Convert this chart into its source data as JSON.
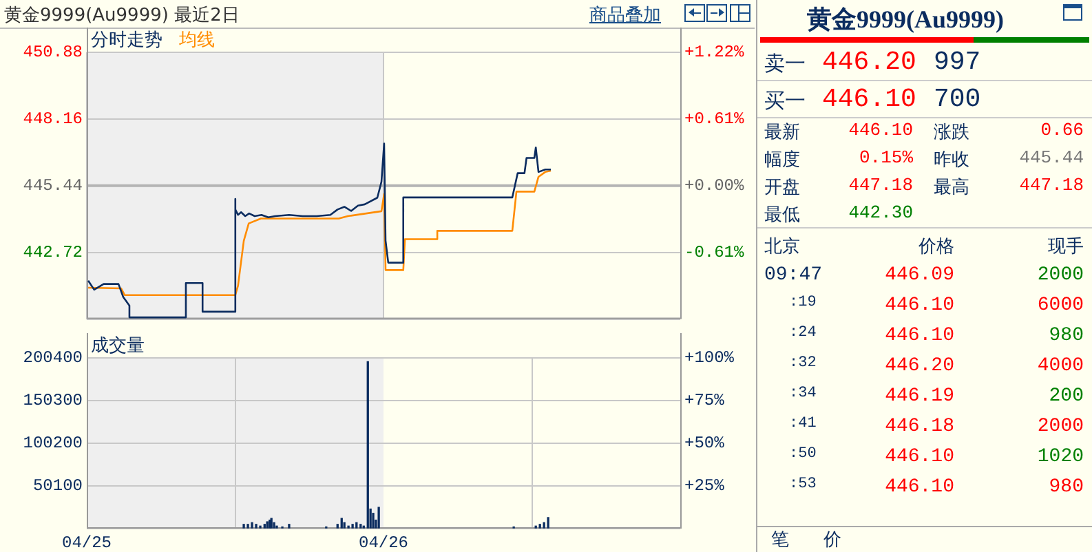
{
  "chart_data": [
    {
      "type": "line",
      "title": "黄金9999(Au9999) 最近2日",
      "annotations": [
        "商品叠加"
      ],
      "grid": true,
      "tick_labels": "y",
      "marker": "none",
      "xlim": [
        "--04-25",
        "--04-27"
      ],
      "xticks": [
        {
          "value": "--04-25",
          "label": "04/25"
        },
        {
          "value": "--04-26",
          "label": "04/26"
        }
      ],
      "ylim": [
        440.0,
        450.88
      ],
      "yticks": [
        {
          "value": 440.0,
          "label": null
        },
        448.16,
        450.88,
        445.44,
        442.72
      ],
      "y2lim": [
        -1.22,
        1.22
      ],
      "y2ticks": [
        {
          "value": 1.22,
          "label": "+1.22%"
        },
        {
          "value": 0.61,
          "label": "+0.61%"
        },
        {
          "value": 0,
          "label": "+0.00%"
        },
        {
          "value": -0.61,
          "label": "-0.61%"
        }
      ],
      "bands": [
        {
          "axis": "x",
          "from": "--04-25",
          "to": "--04-26",
          "color": "#efefef"
        }
      ],
      "ref_lines": [
        {
          "axis": "y",
          "value": 445.44,
          "color": "#b4b4b4"
        }
      ],
      "series": [
        {
          "name": "分时走势",
          "color": "#0b2c5f",
          "x": [
            "--04-25T00:07",
            "--04-25T00:36",
            "--04-25T01:22",
            "--04-25T02:34",
            "--04-25T02:57",
            "--04-25T03:27",
            "--04-25T03:27",
            "--04-25T08:01",
            "--04-25T08:01",
            "--04-25T09:22",
            "--04-25T09:22",
            "--04-25T12:01",
            "--04-25T12:01",
            "--04-25T12:01",
            "--04-25T12:14",
            "--04-25T12:29",
            "--04-25T12:49",
            "--04-25T13:08",
            "--04-25T13:35",
            "--04-25T14:08",
            "--04-25T14:41",
            "--04-25T15:14",
            "--04-25T16:22",
            "--04-25T17:28",
            "--04-25T18:36",
            "--04-25T19:42",
            "--04-25T20:17",
            "--04-25T20:50",
            "--04-25T21:23",
            "--04-25T21:56",
            "--04-25T22:29",
            "--04-25T23:30",
            "--04-25T23:50",
            "--04-26T00:03",
            "--04-26T00:10",
            "--04-26T00:23",
            "--04-26T01:36",
            "--04-26T01:36",
            "--04-26T10:25",
            "--04-26T10:51",
            "--04-26T11:24",
            "--04-26T11:34",
            "--04-26T12:12",
            "--04-26T12:19",
            "--04-26T12:32",
            "--04-26T13:05",
            "--04-26T13:32"
          ],
          "values": [
            441.57,
            441.2,
            441.43,
            441.43,
            440.9,
            440.55,
            440.07,
            440.07,
            441.47,
            441.47,
            440.3,
            440.3,
            444.9,
            444.47,
            444.25,
            444.36,
            444.2,
            444.31,
            444.2,
            444.25,
            444.15,
            444.2,
            444.25,
            444.2,
            444.2,
            444.25,
            444.47,
            444.58,
            444.41,
            444.63,
            444.68,
            444.95,
            445.6,
            447.16,
            443.2,
            442.3,
            442.3,
            444.96,
            444.96,
            445.95,
            445.95,
            446.57,
            446.57,
            447.0,
            446.0,
            446.1,
            446.1
          ]
        },
        {
          "name": "均线",
          "color": "#ff8c00",
          "x": [
            "--04-25T00:07",
            "--04-25T02:47",
            "--04-25T03:04",
            "--04-25T12:01",
            "--04-25T12:14",
            "--04-25T12:42",
            "--04-25T13:06",
            "--04-25T14:05",
            "--04-25T20:23",
            "--04-25T21:07",
            "--04-25T23:50",
            "--04-26T00:03",
            "--04-26T00:10",
            "--04-26T00:23",
            "--04-26T01:36",
            "--04-26T01:44",
            "--04-26T04:21",
            "--04-26T04:21",
            "--04-26T10:25",
            "--04-26T10:45",
            "--04-26T12:12",
            "--04-26T12:32",
            "--04-26T13:05",
            "--04-26T13:32"
          ],
          "values": [
            441.28,
            441.25,
            440.98,
            440.98,
            441.36,
            443.19,
            443.9,
            444.1,
            444.1,
            444.2,
            444.4,
            445.1,
            442.0,
            442.0,
            442.0,
            443.26,
            443.26,
            443.6,
            443.6,
            445.2,
            445.2,
            445.8,
            446.0,
            446.05
          ]
        }
      ]
    },
    {
      "type": "bar",
      "title": "成交量",
      "grid": true,
      "xlim": [
        "--04-25",
        "--04-27"
      ],
      "xticks": [
        {
          "value": "--04-25",
          "label": "04/25"
        },
        {
          "value": "--04-26",
          "label": "04/26"
        }
      ],
      "ylim": [
        0,
        200400
      ],
      "yticks": [
        {
          "value": 0,
          "label": null
        },
        50100,
        100200,
        150300,
        200400
      ],
      "y2lim": [
        0,
        100
      ],
      "y2ticks": [
        {
          "value": 25,
          "label": "+25%"
        },
        {
          "value": 50,
          "label": "+50%"
        },
        {
          "value": 75,
          "label": "+75%"
        },
        {
          "value": 100,
          "label": "+100%"
        }
      ],
      "bands": [
        {
          "axis": "x",
          "from": "--04-25",
          "to": "--04-26",
          "color": "#efefef"
        }
      ],
      "series": [
        {
          "color": "#0b2c5f",
          "x": [
            "--04-25T12:42",
            "--04-25T13:02",
            "--04-25T13:22",
            "--04-25T13:42",
            "--04-25T14:02",
            "--04-25T14:23",
            "--04-25T14:36",
            "--04-25T14:48",
            "--04-25T14:56",
            "--04-25T15:09",
            "--04-25T15:22",
            "--04-25T15:49",
            "--04-25T16:22",
            "--04-25T19:22",
            "--04-25T20:17",
            "--04-25T20:37",
            "--04-25T20:50",
            "--04-25T21:10",
            "--04-25T21:30",
            "--04-25T21:49",
            "--04-25T22:09",
            "--04-25T22:24",
            "--04-25T22:44",
            "--04-25T22:57",
            "--04-25T23:10",
            "--04-25T23:23",
            "--04-25T23:37",
            "--04-26T10:32",
            "--04-26T12:19",
            "--04-26T12:39",
            "--04-26T12:59",
            "--04-26T13:19"
          ],
          "values": [
            5000,
            5000,
            7000,
            5000,
            3000,
            5000,
            8000,
            10000,
            12000,
            7000,
            3000,
            2000,
            5000,
            2000,
            5000,
            12000,
            7000,
            3000,
            5000,
            7000,
            5000,
            3000,
            196000,
            23000,
            18000,
            10000,
            25000,
            2000,
            3000,
            5000,
            7000,
            13000
          ]
        }
      ]
    },
    {
      "type": "other",
      "title": "黄金9999(Au9999)",
      "annotations": [
        "卖一",
        "446.20",
        "997",
        "买一",
        "446.10",
        "700",
        "最新",
        "446.10",
        "涨跌",
        "0.66",
        "幅度",
        "0.15%",
        "昨收",
        "445.44",
        "开盘",
        "447.18",
        "最高",
        "447.18",
        "最低",
        "442.30",
        "北京",
        "价格",
        "现手",
        "09:47",
        "446.09",
        "2000",
        ":19",
        "446.10",
        "6000",
        ":24",
        "446.10",
        "980",
        ":32",
        "446.20",
        "4000",
        ":34",
        "446.19",
        "200",
        ":41",
        "446.18",
        "2000",
        ":50",
        "446.10",
        "1020",
        ":53",
        "446.10",
        "980",
        "笔",
        "价"
      ],
      "colors": [
        "#0b2c5f",
        "#ff0000",
        "#0b2c5f",
        "#0b2c5f",
        "#ff0000",
        "#0b2c5f",
        "#0b2c5f",
        "#ff0000",
        "#0b2c5f",
        "#ff0000",
        "#0b2c5f",
        "#ff0000",
        "#0b2c5f",
        "#777777",
        "#0b2c5f",
        "#ff0000",
        "#0b2c5f",
        "#ff0000",
        "#0b2c5f",
        "#008000",
        "#0b2c5f",
        "#0b2c5f",
        "#0b2c5f",
        "#0b2c5f",
        "#ff0000",
        "#008000",
        "#0b2c5f",
        "#ff0000",
        "#ff0000",
        "#0b2c5f",
        "#ff0000",
        "#008000",
        "#0b2c5f",
        "#ff0000",
        "#ff0000",
        "#0b2c5f",
        "#ff0000",
        "#008000",
        "#0b2c5f",
        "#ff0000",
        "#ff0000",
        "#0b2c5f",
        "#ff0000",
        "#008000",
        "#0b2c5f",
        "#ff0000",
        "#ff0000",
        "#0b2c5f",
        "#0b2c5f"
      ]
    }
  ]
}
